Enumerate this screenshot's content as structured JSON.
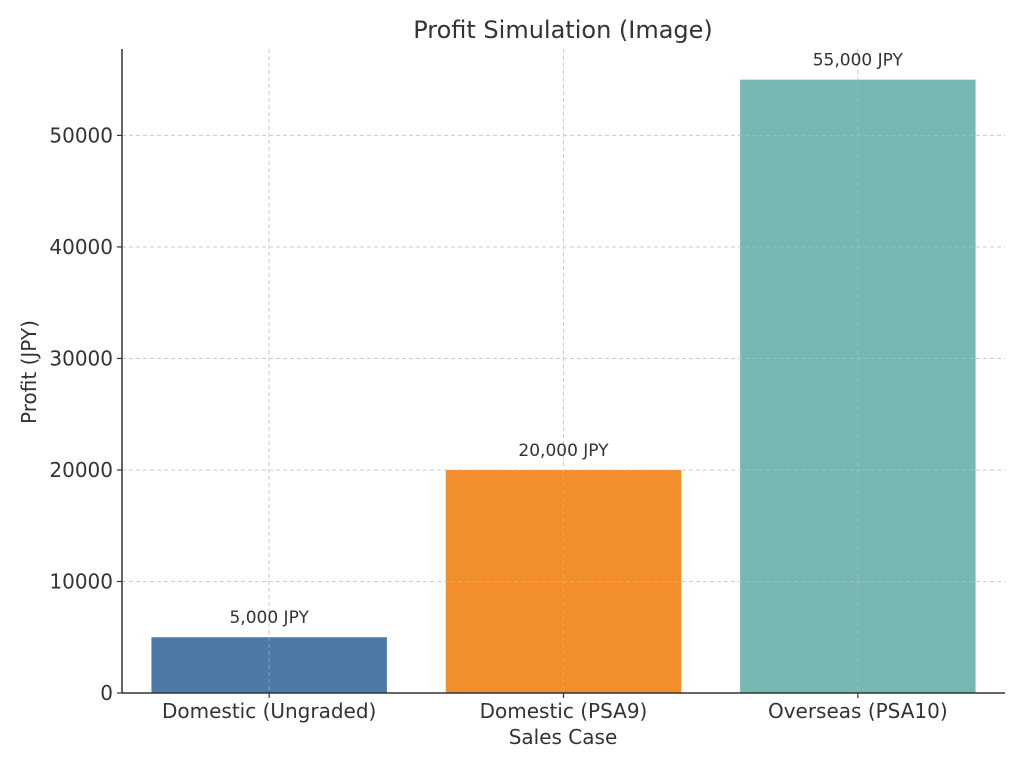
{
  "chart_data": {
    "type": "bar",
    "title": "Profit Simulation (Image)",
    "xlabel": "Sales Case",
    "ylabel": "Profit (JPY)",
    "categories": [
      "Domestic (Ungraded)",
      "Domestic (PSA9)",
      "Overseas (PSA10)"
    ],
    "values": [
      5000,
      20000,
      55000
    ],
    "data_labels": [
      "5,000 JPY",
      "20,000 JPY",
      "55,000 JPY"
    ],
    "colors": [
      "#4e79a7",
      "#f28e2b",
      "#76b7b2"
    ],
    "ylim": [
      0,
      57750
    ],
    "yticks": [
      0,
      10000,
      20000,
      30000,
      40000,
      50000
    ],
    "ytick_labels": [
      "0",
      "10000",
      "20000",
      "30000",
      "40000",
      "50000"
    ],
    "grid": true,
    "grid_style": "dashed"
  }
}
